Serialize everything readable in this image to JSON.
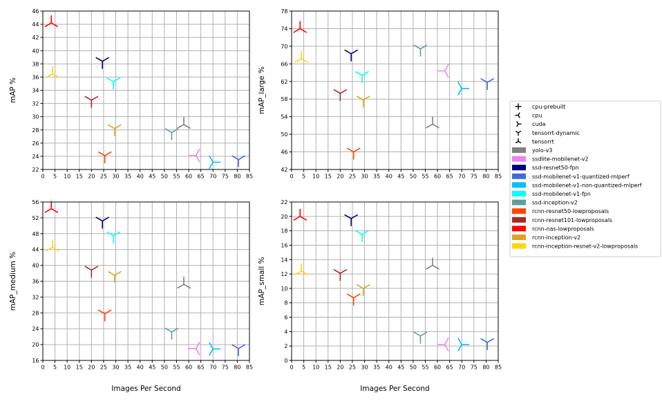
{
  "legend": {
    "markers": [
      {
        "label": "cpu-prebuilt",
        "icon": "plus"
      },
      {
        "label": "cpu",
        "icon": "tri-right"
      },
      {
        "label": "cuda",
        "icon": "tri-left"
      },
      {
        "label": "tensorrt-dynamic",
        "icon": "tri-up"
      },
      {
        "label": "tensorrt",
        "icon": "tri-down"
      }
    ],
    "models": [
      {
        "label": "yolo-v3",
        "color": "#808080"
      },
      {
        "label": "ssdlite-mobilenet-v2",
        "color": "#ee82ee"
      },
      {
        "label": "ssd-resnet50-fpn",
        "color": "#000080"
      },
      {
        "label": "ssd-mobilenet-v1-quantized-mlperf",
        "color": "#4169e1"
      },
      {
        "label": "ssd-mobilenet-v1-non-quantized-mlperf",
        "color": "#00bfff"
      },
      {
        "label": "ssd-mobilenet-v1-fpn",
        "color": "#00ffff"
      },
      {
        "label": "ssd-inception-v2",
        "color": "#5f9ea0"
      },
      {
        "label": "rcnn-resnet50-lowproposals",
        "color": "#ff4500"
      },
      {
        "label": "rcnn-resnet101-lowproposals",
        "color": "#a52a2a"
      },
      {
        "label": "rcnn-nas-lowproposals",
        "color": "#ff0000"
      },
      {
        "label": "rcnn-inception-v2",
        "color": "#daa520"
      },
      {
        "label": "rcnn-inception-resnet-v2-lowproposals",
        "color": "#ffd700"
      }
    ]
  },
  "chart_data": [
    {
      "type": "scatter",
      "xlabel": "",
      "ylabel": "mAP %",
      "xlim": [
        0,
        85
      ],
      "ylim": [
        22,
        46
      ],
      "xticks": [
        0,
        5,
        10,
        15,
        20,
        25,
        30,
        35,
        40,
        45,
        50,
        55,
        60,
        65,
        70,
        75,
        80,
        85
      ],
      "yticks": [
        22,
        24,
        26,
        28,
        30,
        32,
        34,
        36,
        38,
        40,
        42,
        44,
        46
      ],
      "points": [
        {
          "model": "rcnn-nas-lowproposals",
          "marker": "tri-down",
          "x": 3.5,
          "y": 44.2
        },
        {
          "model": "rcnn-inception-resnet-v2-lowproposals",
          "marker": "tri-down",
          "x": 4,
          "y": 36.5
        },
        {
          "model": "ssd-resnet50-fpn",
          "marker": "tri-up",
          "x": 24.5,
          "y": 38.4
        },
        {
          "model": "ssd-mobilenet-v1-fpn",
          "marker": "tri-up",
          "x": 29,
          "y": 35.3
        },
        {
          "model": "rcnn-resnet101-lowproposals",
          "marker": "tri-up",
          "x": 20,
          "y": 32.5
        },
        {
          "model": "rcnn-inception-v2",
          "marker": "tri-up",
          "x": 29.5,
          "y": 28.2
        },
        {
          "model": "ssd-inception-v2",
          "marker": "tri-up",
          "x": 53,
          "y": 27.6
        },
        {
          "model": "yolo-v3",
          "marker": "tri-down",
          "x": 58,
          "y": 28.8
        },
        {
          "model": "rcnn-resnet50-lowproposals",
          "marker": "tri-up",
          "x": 25.5,
          "y": 24.1
        },
        {
          "model": "ssdlite-mobilenet-v2",
          "marker": "tri-right",
          "x": 63,
          "y": 24.1
        },
        {
          "model": "ssd-mobilenet-v1-non-quantized-mlperf",
          "marker": "tri-left",
          "x": 70,
          "y": 23.1
        },
        {
          "model": "ssd-mobilenet-v1-quantized-mlperf",
          "marker": "tri-up",
          "x": 80.5,
          "y": 23.5
        }
      ]
    },
    {
      "type": "scatter",
      "xlabel": "",
      "ylabel": "mAP_large %",
      "xlim": [
        0,
        85
      ],
      "ylim": [
        42,
        78
      ],
      "xticks": [
        0,
        5,
        10,
        15,
        20,
        25,
        30,
        35,
        40,
        45,
        50,
        55,
        60,
        65,
        70,
        75,
        80,
        85
      ],
      "yticks": [
        42,
        46,
        50,
        54,
        58,
        62,
        66,
        70,
        74,
        78
      ],
      "points": [
        {
          "model": "rcnn-nas-lowproposals",
          "marker": "tri-down",
          "x": 3.5,
          "y": 74.0
        },
        {
          "model": "rcnn-inception-resnet-v2-lowproposals",
          "marker": "tri-down",
          "x": 4,
          "y": 67.2
        },
        {
          "model": "ssd-resnet50-fpn",
          "marker": "tri-up",
          "x": 24.5,
          "y": 68.3
        },
        {
          "model": "ssd-mobilenet-v1-fpn",
          "marker": "tri-up",
          "x": 29,
          "y": 63.4
        },
        {
          "model": "ssd-inception-v2",
          "marker": "tri-up",
          "x": 53,
          "y": 69.4
        },
        {
          "model": "ssdlite-mobilenet-v2",
          "marker": "tri-right",
          "x": 63,
          "y": 64.4
        },
        {
          "model": "ssd-mobilenet-v1-non-quantized-mlperf",
          "marker": "tri-left",
          "x": 70,
          "y": 60.4
        },
        {
          "model": "ssd-mobilenet-v1-quantized-mlperf",
          "marker": "tri-up",
          "x": 80.5,
          "y": 61.8
        },
        {
          "model": "rcnn-resnet101-lowproposals",
          "marker": "tri-up",
          "x": 20,
          "y": 59.3
        },
        {
          "model": "rcnn-inception-v2",
          "marker": "tri-up",
          "x": 29.5,
          "y": 57.8
        },
        {
          "model": "yolo-v3",
          "marker": "tri-down",
          "x": 58,
          "y": 52.3
        },
        {
          "model": "rcnn-resnet50-lowproposals",
          "marker": "tri-up",
          "x": 25.5,
          "y": 46.0
        }
      ]
    },
    {
      "type": "scatter",
      "xlabel": "Images Per Second",
      "ylabel": "mAP_medium %",
      "xlim": [
        0,
        85
      ],
      "ylim": [
        16,
        56
      ],
      "xticks": [
        0,
        5,
        10,
        15,
        20,
        25,
        30,
        35,
        40,
        45,
        50,
        55,
        60,
        65,
        70,
        75,
        80,
        85
      ],
      "yticks": [
        16,
        20,
        24,
        28,
        32,
        36,
        40,
        44,
        48,
        52,
        56
      ],
      "points": [
        {
          "model": "rcnn-nas-lowproposals",
          "marker": "tri-down",
          "x": 3.5,
          "y": 54.3
        },
        {
          "model": "rcnn-inception-resnet-v2-lowproposals",
          "marker": "tri-down",
          "x": 4,
          "y": 44.6
        },
        {
          "model": "ssd-resnet50-fpn",
          "marker": "tri-up",
          "x": 24.5,
          "y": 51.2
        },
        {
          "model": "ssd-mobilenet-v1-fpn",
          "marker": "tri-up",
          "x": 29,
          "y": 47.5
        },
        {
          "model": "rcnn-resnet101-lowproposals",
          "marker": "tri-up",
          "x": 20,
          "y": 38.8
        },
        {
          "model": "rcnn-inception-v2",
          "marker": "tri-up",
          "x": 29.5,
          "y": 37.5
        },
        {
          "model": "yolo-v3",
          "marker": "tri-down",
          "x": 58,
          "y": 35.2
        },
        {
          "model": "rcnn-resnet50-lowproposals",
          "marker": "tri-up",
          "x": 25.5,
          "y": 27.8
        },
        {
          "model": "ssd-inception-v2",
          "marker": "tri-up",
          "x": 53,
          "y": 23.2
        },
        {
          "model": "ssdlite-mobilenet-v2",
          "marker": "tri-right",
          "x": 63,
          "y": 19.0
        },
        {
          "model": "ssd-mobilenet-v1-non-quantized-mlperf",
          "marker": "tri-left",
          "x": 70,
          "y": 18.9
        },
        {
          "model": "ssd-mobilenet-v1-quantized-mlperf",
          "marker": "tri-up",
          "x": 80.5,
          "y": 19.0
        }
      ]
    },
    {
      "type": "scatter",
      "xlabel": "Images Per Second",
      "ylabel": "mAP_small %",
      "xlim": [
        0,
        85
      ],
      "ylim": [
        0,
        22
      ],
      "xticks": [
        0,
        5,
        10,
        15,
        20,
        25,
        30,
        35,
        40,
        45,
        50,
        55,
        60,
        65,
        70,
        75,
        80,
        85
      ],
      "yticks": [
        0,
        2,
        4,
        6,
        8,
        10,
        12,
        14,
        16,
        18,
        20,
        22
      ],
      "points": [
        {
          "model": "rcnn-nas-lowproposals",
          "marker": "tri-down",
          "x": 3.5,
          "y": 20.0
        },
        {
          "model": "ssd-resnet50-fpn",
          "marker": "tri-up",
          "x": 24.5,
          "y": 19.7
        },
        {
          "model": "ssd-mobilenet-v1-fpn",
          "marker": "tri-up",
          "x": 29,
          "y": 17.5
        },
        {
          "model": "yolo-v3",
          "marker": "tri-down",
          "x": 58,
          "y": 13.2
        },
        {
          "model": "rcnn-inception-resnet-v2-lowproposals",
          "marker": "tri-down",
          "x": 4,
          "y": 12.4
        },
        {
          "model": "rcnn-resnet101-lowproposals",
          "marker": "tri-up",
          "x": 20,
          "y": 12.1
        },
        {
          "model": "rcnn-inception-v2",
          "marker": "tri-up",
          "x": 29.5,
          "y": 10.0
        },
        {
          "model": "rcnn-resnet50-lowproposals",
          "marker": "tri-up",
          "x": 25.5,
          "y": 8.7
        },
        {
          "model": "ssd-inception-v2",
          "marker": "tri-up",
          "x": 53,
          "y": 3.4
        },
        {
          "model": "ssdlite-mobilenet-v2",
          "marker": "tri-right",
          "x": 63,
          "y": 2.2
        },
        {
          "model": "ssd-mobilenet-v1-non-quantized-mlperf",
          "marker": "tri-left",
          "x": 70,
          "y": 2.2
        },
        {
          "model": "ssd-mobilenet-v1-quantized-mlperf",
          "marker": "tri-up",
          "x": 80.5,
          "y": 2.5
        }
      ]
    }
  ]
}
